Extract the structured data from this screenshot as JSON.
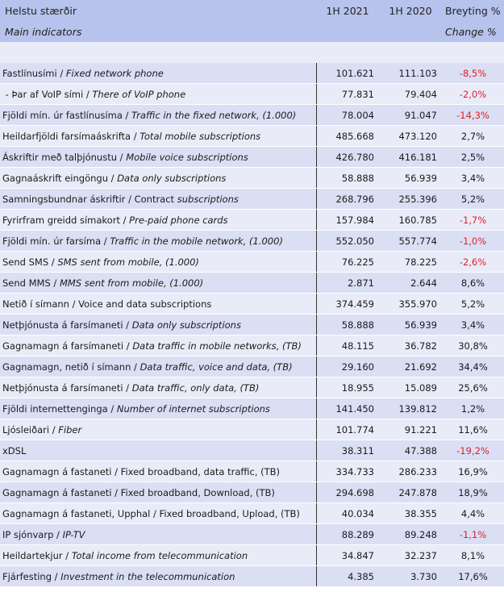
{
  "header": {
    "title_is": "Helstu stærðir",
    "title_en": "Main indicators",
    "col_2021": "1H 2021",
    "col_2020": "1H 2020",
    "col_change_is": "Breyting %",
    "col_change_en": "Change %"
  },
  "rows": [
    {
      "is": "Fastlínusími / ",
      "en": "Fixed network phone",
      "v2021": "101.621",
      "v2020": "111.103",
      "change": "-8,5%",
      "neg": true
    },
    {
      "is": " - Þar af VoIP sími / ",
      "en": "There of VoIP phone",
      "v2021": "77.831",
      "v2020": "79.404",
      "change": "-2,0%",
      "neg": true
    },
    {
      "is": "Fjöldi mín. úr fastlínusíma / ",
      "en": "Traffic in the fixed network, (1.000)",
      "v2021": "78.004",
      "v2020": "91.047",
      "change": "-14,3%",
      "neg": true
    },
    {
      "is": "Heildarfjöldi farsímaáskrifta / ",
      "en": "Total mobile subscriptions",
      "v2021": "485.668",
      "v2020": "473.120",
      "change": "2,7%",
      "neg": false
    },
    {
      "is": "Áskriftir með talþjónustu / ",
      "en": "Mobile voice subscriptions",
      "v2021": "426.780",
      "v2020": "416.181",
      "change": "2,5%",
      "neg": false
    },
    {
      "is": "Gagnaáskrift eingöngu / ",
      "en": "Data only subscriptions",
      "v2021": "58.888",
      "v2020": "56.939",
      "change": "3,4%",
      "neg": false
    },
    {
      "is": "Samningsbundnar áskriftir / Contract ",
      "en": "subscriptions",
      "v2021": "268.796",
      "v2020": "255.396",
      "change": "5,2%",
      "neg": false
    },
    {
      "is": "Fyrirfram greidd símakort / ",
      "en": "Pre-paid phone cards",
      "v2021": "157.984",
      "v2020": "160.785",
      "change": "-1,7%",
      "neg": true
    },
    {
      "is": "Fjöldi mín. úr farsíma / ",
      "en": "Traffic in the mobile network, (1.000)",
      "v2021": "552.050",
      "v2020": "557.774",
      "change": "-1,0%",
      "neg": true
    },
    {
      "is": "Send SMS / ",
      "en": "SMS sent from mobile, (1.000)",
      "v2021": "76.225",
      "v2020": "78.225",
      "change": "-2,6%",
      "neg": true
    },
    {
      "is": "Send MMS / ",
      "en": "MMS sent from mobile, (1.000)",
      "v2021": "2.871",
      "v2020": "2.644",
      "change": "8,6%",
      "neg": false
    },
    {
      "is": "Netið í símann / Voice and data subscriptions",
      "en": "",
      "v2021": "374.459",
      "v2020": "355.970",
      "change": "5,2%",
      "neg": false
    },
    {
      "is": "Netþjónusta á farsímaneti / ",
      "en": "Data only subscriptions",
      "v2021": "58.888",
      "v2020": "56.939",
      "change": "3,4%",
      "neg": false
    },
    {
      "is": "Gagnamagn á farsímaneti / ",
      "en": "Data traffic in mobile networks, (TB)",
      "v2021": "48.115",
      "v2020": "36.782",
      "change": "30,8%",
      "neg": false
    },
    {
      "is": "Gagnamagn, netið í símann / ",
      "en": "Data traffic, voice and data, (TB)",
      "v2021": "29.160",
      "v2020": "21.692",
      "change": "34,4%",
      "neg": false
    },
    {
      "is": "Netþjónusta á farsímaneti / ",
      "en": "Data traffic, only data, (TB)",
      "v2021": "18.955",
      "v2020": "15.089",
      "change": "25,6%",
      "neg": false
    },
    {
      "is": "Fjöldi internettenginga / ",
      "en": "Number of internet subscriptions",
      "v2021": "141.450",
      "v2020": "139.812",
      "change": "1,2%",
      "neg": false
    },
    {
      "is": "Ljósleiðari / ",
      "en": "Fiber",
      "v2021": "101.774",
      "v2020": "91.221",
      "change": "11,6%",
      "neg": false
    },
    {
      "is": "xDSL",
      "en": "",
      "v2021": "38.311",
      "v2020": "47.388",
      "change": "-19,2%",
      "neg": true
    },
    {
      "is": "Gagnamagn á fastaneti / Fixed broadband, data traffic, (TB)",
      "en": "",
      "v2021": "334.733",
      "v2020": "286.233",
      "change": "16,9%",
      "neg": false
    },
    {
      "is": "Gagnamagn á fastaneti / Fixed broadband, Download, (TB)",
      "en": "",
      "v2021": "294.698",
      "v2020": "247.878",
      "change": "18,9%",
      "neg": false
    },
    {
      "is": "Gagnamagn á fastaneti, Upphal / Fixed broadband, Upload, (TB)",
      "en": "",
      "v2021": "40.034",
      "v2020": "38.355",
      "change": "4,4%",
      "neg": false
    },
    {
      "is": "IP sjónvarp / ",
      "en": "IP-TV",
      "v2021": "88.289",
      "v2020": "89.248",
      "change": "-1,1%",
      "neg": true
    },
    {
      "is": "Heildartekjur / ",
      "en": "Total income from telecommunication",
      "v2021": "34.847",
      "v2020": "32.237",
      "change": "8,1%",
      "neg": false
    },
    {
      "is": "Fjárfesting / ",
      "en": "Investment in the telecommunication",
      "v2021": "4.385",
      "v2020": "3.730",
      "change": "17,6%",
      "neg": false
    }
  ]
}
